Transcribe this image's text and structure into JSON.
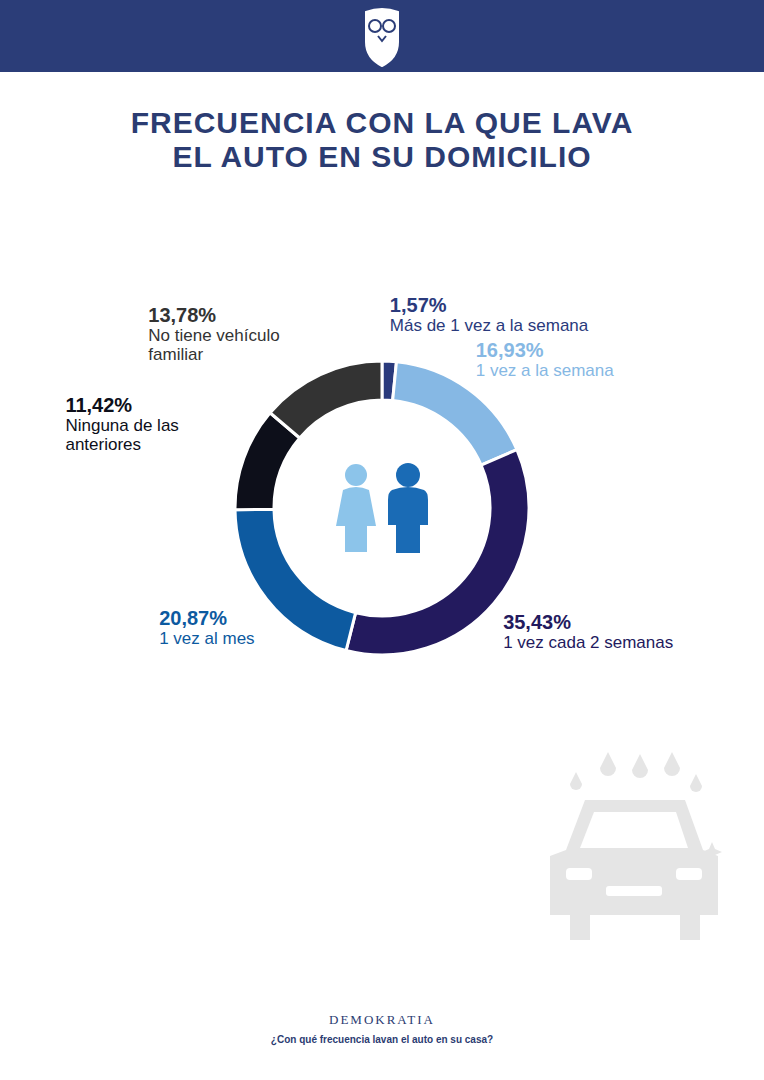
{
  "chart_data": {
    "type": "donut",
    "title": "FRECUENCIA CON LA QUE LAVA EL AUTO EN SU DOMICILIO",
    "categories": [
      "Más de 1 vez a la semana",
      "1 vez a la semana",
      "1 vez cada 2 semanas",
      "1 vez al mes",
      "Ninguna de las anteriores",
      "No tiene vehículo familiar"
    ],
    "values": [
      1.57,
      16.93,
      35.43,
      20.87,
      11.42,
      13.78
    ],
    "value_labels": [
      "1,57%",
      "16,93%",
      "35,43%",
      "20,87%",
      "11,42%",
      "13,78%"
    ],
    "colors": [
      "#2a3a7c",
      "#86b8e4",
      "#231a5e",
      "#0d5aa0",
      "#0d0f1a",
      "#333333"
    ],
    "data_labels": true,
    "brand": "DEMOKRATIA",
    "question": "¿Con qué frecuencia lavan el auto en su casa?"
  }
}
